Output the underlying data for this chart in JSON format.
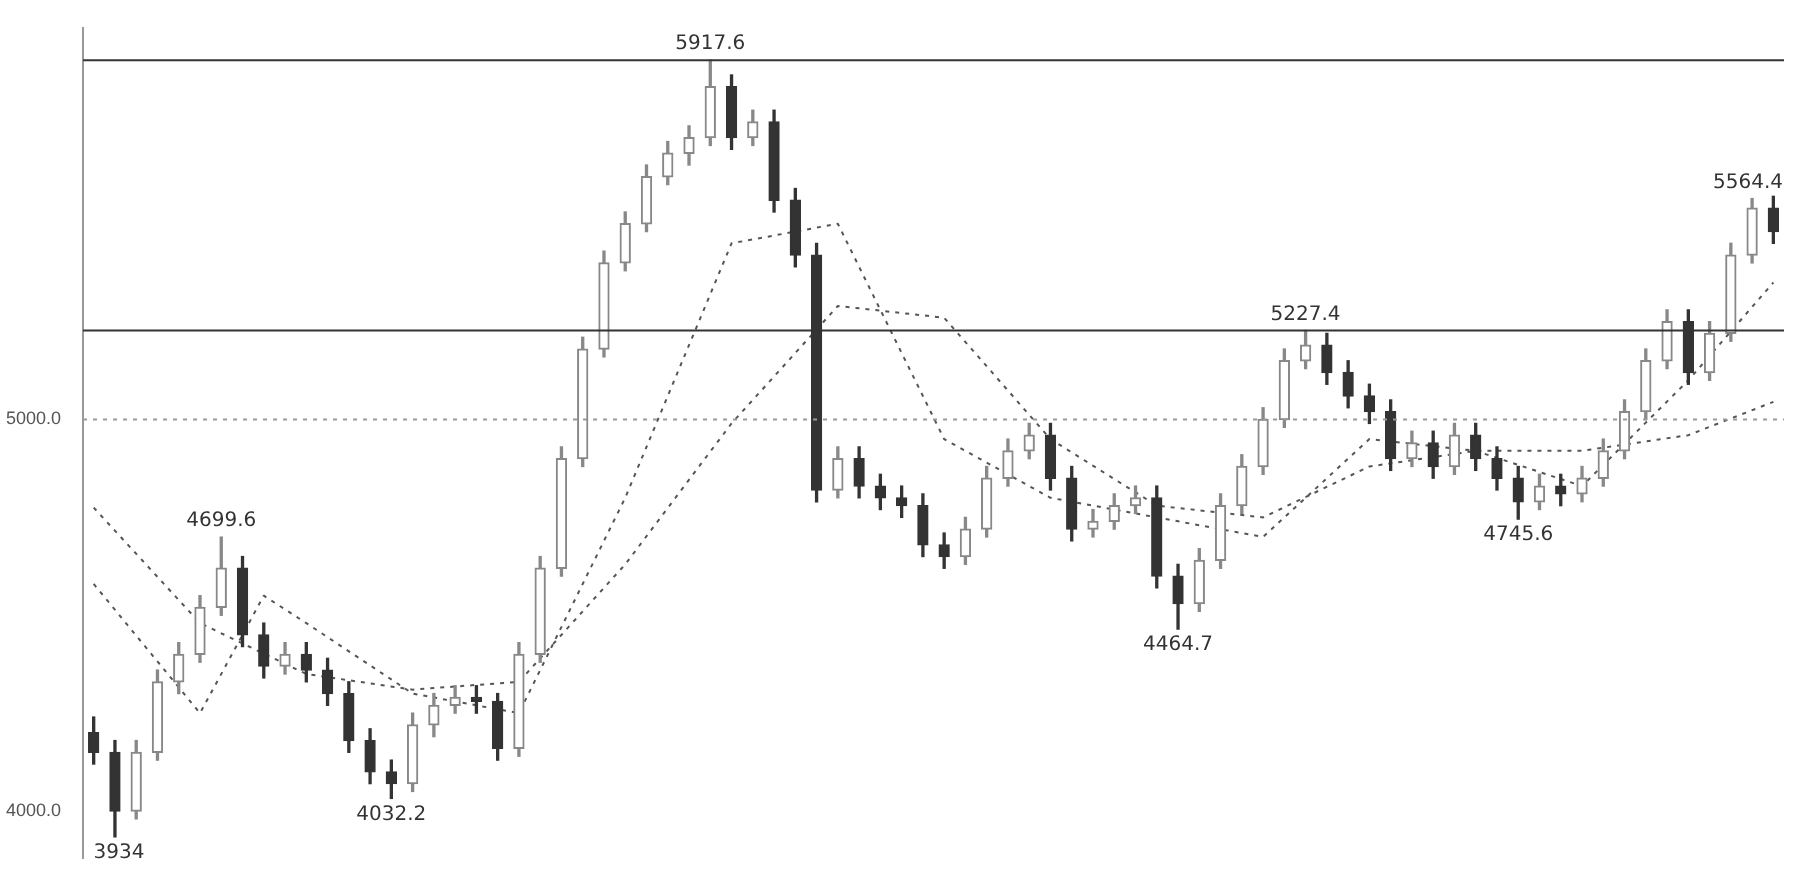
{
  "chart_data": {
    "type": "candlestick",
    "categories": [
      null,
      null,
      null,
      null,
      null,
      null,
      null,
      null,
      null,
      null,
      null,
      null,
      null,
      null,
      null,
      null,
      null,
      null,
      null,
      null,
      null,
      null,
      null,
      null,
      null,
      null,
      null,
      null,
      null,
      null,
      null,
      null,
      null,
      null,
      null,
      null,
      null,
      null,
      null,
      null,
      null,
      null,
      null,
      null,
      null,
      null,
      null,
      null,
      null,
      null,
      null,
      null,
      null,
      null,
      null,
      null,
      null,
      null,
      null,
      null,
      null,
      null,
      null,
      null,
      null,
      null,
      null,
      null,
      null,
      null,
      null,
      null,
      null,
      null,
      null,
      null,
      null,
      null,
      null,
      null
    ],
    "series": [
      {
        "colors": [
          "#333333",
          "#333333",
          "#888888",
          "#888888",
          "#888888",
          "#888888",
          "#888888",
          "#333333",
          "#333333",
          "#888888",
          "#333333",
          "#333333",
          "#333333",
          "#333333",
          "#333333",
          "#888888",
          "#888888",
          "#888888",
          "#333333",
          "#333333",
          "#888888",
          "#888888",
          "#888888",
          "#888888",
          "#888888",
          "#888888",
          "#888888",
          "#888888",
          "#888888",
          "#888888",
          "#333333",
          "#888888",
          "#333333",
          "#333333",
          "#333333",
          "#888888",
          "#333333",
          "#333333",
          "#333333",
          "#333333",
          "#333333",
          "#888888",
          "#888888",
          "#888888",
          "#888888",
          "#333333",
          "#333333",
          "#888888",
          "#888888",
          "#888888",
          "#333333",
          "#333333",
          "#888888",
          "#888888",
          "#888888",
          "#888888",
          "#888888",
          "#888888",
          "#333333",
          "#333333",
          "#333333",
          "#333333",
          "#888888",
          "#333333",
          "#888888",
          "#333333",
          "#333333",
          "#333333",
          "#888888",
          "#333333",
          "#888888",
          "#888888",
          "#888888",
          "#888888",
          "#888888",
          "#333333",
          "#888888",
          "#888888",
          "#888888",
          "#333333"
        ],
        "ohlc": [
          [
            4200,
            4240,
            4120,
            4150
          ],
          [
            4150,
            4180,
            3934,
            4000
          ],
          [
            4000,
            4180,
            3980,
            4150
          ],
          [
            4150,
            4360,
            4130,
            4330
          ],
          [
            4330,
            4430,
            4300,
            4400
          ],
          [
            4400,
            4550,
            4380,
            4520
          ],
          [
            4520,
            4699.6,
            4500,
            4620
          ],
          [
            4620,
            4650,
            4420,
            4450
          ],
          [
            4450,
            4480,
            4340,
            4370
          ],
          [
            4370,
            4430,
            4350,
            4400
          ],
          [
            4400,
            4430,
            4330,
            4360
          ],
          [
            4360,
            4390,
            4270,
            4300
          ],
          [
            4300,
            4330,
            4150,
            4180
          ],
          [
            4180,
            4210,
            4070,
            4100
          ],
          [
            4100,
            4130,
            4032.2,
            4070
          ],
          [
            4070,
            4250,
            4050,
            4220
          ],
          [
            4220,
            4300,
            4190,
            4270
          ],
          [
            4270,
            4320,
            4250,
            4290
          ],
          [
            4290,
            4320,
            4250,
            4280
          ],
          [
            4280,
            4300,
            4130,
            4160
          ],
          [
            4160,
            4430,
            4140,
            4400
          ],
          [
            4400,
            4650,
            4380,
            4620
          ],
          [
            4620,
            4930,
            4600,
            4900
          ],
          [
            4900,
            5210,
            4880,
            5180
          ],
          [
            5180,
            5430,
            5160,
            5400
          ],
          [
            5400,
            5530,
            5380,
            5500
          ],
          [
            5500,
            5650,
            5480,
            5620
          ],
          [
            5620,
            5710,
            5600,
            5680
          ],
          [
            5680,
            5750,
            5650,
            5720
          ],
          [
            5720,
            5917.6,
            5700,
            5850
          ],
          [
            5850,
            5880,
            5690,
            5720
          ],
          [
            5720,
            5790,
            5700,
            5760
          ],
          [
            5760,
            5790,
            5530,
            5560
          ],
          [
            5560,
            5590,
            5390,
            5420
          ],
          [
            5420,
            5450,
            4790,
            4820
          ],
          [
            4820,
            4930,
            4800,
            4900
          ],
          [
            4900,
            4930,
            4800,
            4830
          ],
          [
            4830,
            4860,
            4770,
            4800
          ],
          [
            4800,
            4830,
            4750,
            4780
          ],
          [
            4780,
            4810,
            4650,
            4680
          ],
          [
            4680,
            4710,
            4620,
            4650
          ],
          [
            4650,
            4750,
            4630,
            4720
          ],
          [
            4720,
            4880,
            4700,
            4850
          ],
          [
            4850,
            4950,
            4830,
            4920
          ],
          [
            4920,
            4990,
            4900,
            4960
          ],
          [
            4960,
            4990,
            4820,
            4850
          ],
          [
            4850,
            4880,
            4690,
            4720
          ],
          [
            4720,
            4770,
            4700,
            4740
          ],
          [
            4740,
            4810,
            4720,
            4780
          ],
          [
            4780,
            4830,
            4760,
            4800
          ],
          [
            4800,
            4830,
            4570,
            4600
          ],
          [
            4600,
            4630,
            4464.7,
            4530
          ],
          [
            4530,
            4670,
            4510,
            4640
          ],
          [
            4640,
            4810,
            4620,
            4780
          ],
          [
            4780,
            4910,
            4760,
            4880
          ],
          [
            4880,
            5030,
            4860,
            5000
          ],
          [
            5000,
            5180,
            4980,
            5150
          ],
          [
            5150,
            5227.4,
            5130,
            5190
          ],
          [
            5190,
            5220,
            5090,
            5120
          ],
          [
            5120,
            5150,
            5030,
            5060
          ],
          [
            5060,
            5090,
            4990,
            5020
          ],
          [
            5020,
            5050,
            4870,
            4900
          ],
          [
            4900,
            4970,
            4880,
            4940
          ],
          [
            4940,
            4970,
            4850,
            4880
          ],
          [
            4880,
            4990,
            4860,
            4960
          ],
          [
            4960,
            4990,
            4870,
            4900
          ],
          [
            4900,
            4930,
            4820,
            4850
          ],
          [
            4850,
            4880,
            4745.6,
            4790
          ],
          [
            4790,
            4860,
            4770,
            4830
          ],
          [
            4830,
            4860,
            4780,
            4810
          ],
          [
            4810,
            4880,
            4790,
            4850
          ],
          [
            4850,
            4950,
            4830,
            4920
          ],
          [
            4920,
            5050,
            4900,
            5020
          ],
          [
            5020,
            5180,
            5000,
            5150
          ],
          [
            5150,
            5280,
            5130,
            5250
          ],
          [
            5250,
            5280,
            5090,
            5120
          ],
          [
            5120,
            5250,
            5100,
            5220
          ],
          [
            5220,
            5450,
            5200,
            5420
          ],
          [
            5420,
            5564.4,
            5400,
            5540
          ],
          [
            5540,
            5570,
            5450,
            5480
          ]
        ]
      },
      {
        "type": "line",
        "color": "#555555",
        "line_style": "dotted",
        "values": [
          4580,
          null,
          null,
          null,
          null,
          4250,
          null,
          null,
          4550,
          null,
          4480,
          null,
          null,
          null,
          null,
          4300,
          null,
          null,
          null,
          null,
          4250,
          null,
          null,
          null,
          null,
          4800,
          null,
          null,
          null,
          null,
          5450,
          null,
          null,
          null,
          null,
          5500,
          null,
          null,
          null,
          null,
          4950,
          null,
          null,
          null,
          null,
          4800,
          null,
          null,
          null,
          null,
          4750,
          null,
          null,
          null,
          null,
          4700,
          null,
          null,
          null,
          null,
          4950,
          null,
          null,
          null,
          null,
          4920,
          null,
          null,
          null,
          null,
          4830,
          null,
          null,
          null,
          null,
          5100,
          null,
          null,
          null,
          5350
        ]
      },
      {
        "type": "line",
        "color": "#555555",
        "line_style": "dotted",
        "values": [
          4775,
          null,
          null,
          null,
          null,
          4480,
          null,
          null,
          null,
          null,
          4350,
          null,
          null,
          null,
          null,
          4310,
          null,
          null,
          null,
          null,
          4330,
          null,
          null,
          null,
          null,
          4630,
          null,
          null,
          null,
          null,
          4990,
          null,
          null,
          null,
          null,
          5290,
          null,
          null,
          null,
          null,
          5260,
          null,
          null,
          null,
          null,
          4950,
          null,
          null,
          null,
          null,
          4780,
          null,
          null,
          null,
          null,
          4750,
          null,
          null,
          null,
          null,
          4880,
          null,
          null,
          null,
          null,
          4920,
          null,
          null,
          null,
          null,
          4920,
          null,
          null,
          null,
          null,
          4960,
          null,
          null,
          null,
          5045
        ]
      }
    ],
    "ylim": [
      3880,
      6000
    ],
    "yticks": [
      {
        "value": 4000,
        "label": "4000.0"
      },
      {
        "value": 5000,
        "label": "5000.0"
      }
    ],
    "tick_labels": "y",
    "grid": false,
    "legend": false,
    "marker": "none",
    "ref_lines": [
      {
        "axis": "y",
        "value": 5917.6,
        "color": "#333333",
        "line_style": "solid"
      },
      {
        "axis": "y",
        "value": 5227.4,
        "color": "#333333",
        "line_style": "solid"
      },
      {
        "axis": "y",
        "value": 5000,
        "color": "#999999",
        "line_style": "dotted"
      }
    ],
    "annotations": [
      {
        "text": "5917.6",
        "y": 5917.6
      },
      {
        "text": "4699.6",
        "y": 4699.6
      },
      {
        "text": "3934",
        "y": 3934
      },
      {
        "text": "4032.2",
        "y": 4032.2
      },
      {
        "text": "4464.7",
        "y": 4464.7
      },
      {
        "text": "5227.4",
        "y": 5227.4
      },
      {
        "text": "4745.6",
        "y": 4745.6
      },
      {
        "text": "5564.4",
        "y": 5564.4
      }
    ]
  }
}
